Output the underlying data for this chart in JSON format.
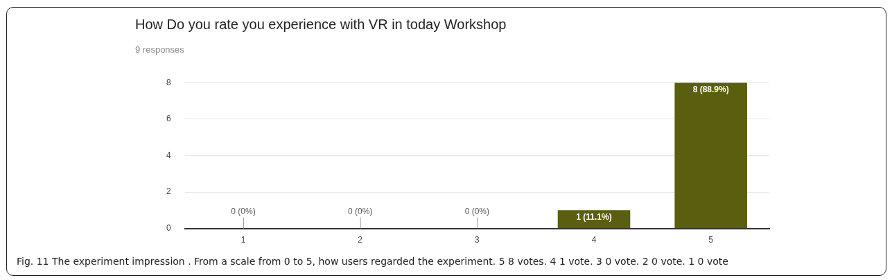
{
  "chart_data": {
    "type": "bar",
    "title": "How Do you rate you experience with VR in today Workshop",
    "subtitle": "9 responses",
    "categories": [
      "1",
      "2",
      "3",
      "4",
      "5"
    ],
    "values": [
      0,
      0,
      0,
      1,
      8
    ],
    "value_labels": [
      "0 (0%)",
      "0 (0%)",
      "0 (0%)",
      "1 (11.1%)",
      "8 (88.9%)"
    ],
    "color": "#5a5e0f",
    "ylim": [
      0,
      8
    ],
    "yticks": [
      0,
      2,
      4,
      6,
      8
    ],
    "grid": "y",
    "legend": false,
    "annotations": [
      "Fig. 11 The experiment impression . From a scale from 0 to 5, how users regarded the experiment. 5 8 votes. 4 1 vote. 3 0 vote. 2 0 vote. 1 0 vote"
    ]
  }
}
